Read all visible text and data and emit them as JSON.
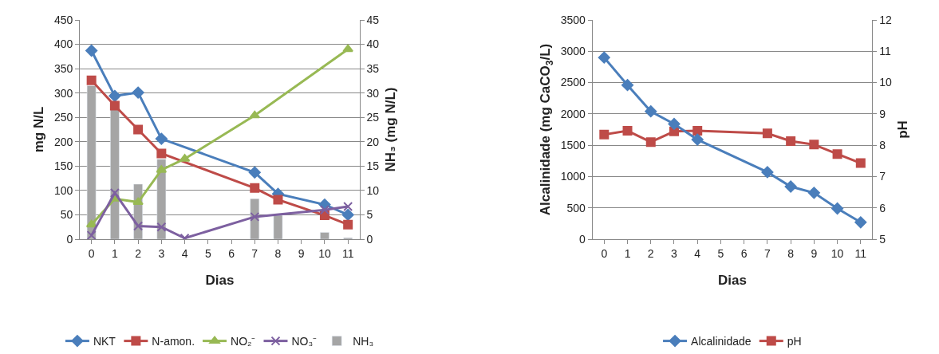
{
  "chart_data": [
    {
      "type": "line",
      "xlabel": "Dias",
      "ylabel": "mg N/L",
      "y2label": "NH₃ (mg N/L)",
      "categories": [
        "0",
        "1",
        "2",
        "3",
        "4",
        "5",
        "6",
        "7",
        "8",
        "9",
        "10",
        "11"
      ],
      "ylim": [
        0,
        450
      ],
      "yticks": [
        0,
        50,
        100,
        150,
        200,
        250,
        300,
        350,
        400,
        450
      ],
      "y2lim": [
        0,
        45
      ],
      "y2ticks": [
        0,
        5,
        10,
        15,
        20,
        25,
        30,
        35,
        40,
        45
      ],
      "grid": "y",
      "legend": "bottom",
      "series": [
        {
          "name": "NKT",
          "color": "#4a7ebb",
          "marker": "diamond",
          "values": [
            387,
            294,
            301,
            206,
            null,
            null,
            null,
            137,
            93,
            null,
            71,
            50
          ]
        },
        {
          "name": "N-amon.",
          "color": "#be4b48",
          "marker": "square",
          "values": [
            326,
            274,
            225,
            176,
            null,
            null,
            null,
            105,
            81,
            null,
            49,
            30
          ]
        },
        {
          "name": "NO₂⁻",
          "color": "#98b954",
          "marker": "triangle",
          "values": [
            30,
            83,
            76,
            142,
            165,
            null,
            null,
            254,
            null,
            null,
            null,
            390
          ]
        },
        {
          "name": "NO₃⁻",
          "color": "#7d60a0",
          "marker": "cross",
          "values": [
            8,
            95,
            27,
            25,
            2,
            null,
            null,
            46,
            null,
            null,
            60,
            67
          ]
        },
        {
          "name": "NH₃",
          "color": "#a5a5a5",
          "type": "bar",
          "axis": "y2",
          "values": [
            31.5,
            26.7,
            11.3,
            16.4,
            null,
            null,
            null,
            8.3,
            4.9,
            null,
            1.4,
            0.3
          ]
        }
      ]
    },
    {
      "type": "line",
      "xlabel": "Dias",
      "ylabel": "Alcalinidade (mg CaCO$_{3}$/L)",
      "y2label": "pH",
      "categories": [
        "0",
        "1",
        "2",
        "3",
        "4",
        "5",
        "6",
        "7",
        "8",
        "9",
        "10",
        "11"
      ],
      "ylim": [
        0,
        3500
      ],
      "yticks": [
        0,
        500,
        1000,
        1500,
        2000,
        2500,
        3000,
        3500
      ],
      "y2lim": [
        5,
        12
      ],
      "y2ticks": [
        5,
        6,
        7,
        8,
        9,
        10,
        11,
        12
      ],
      "grid": "y",
      "legend": "bottom",
      "series": [
        {
          "name": "Alcalinidade",
          "color": "#4a7ebb",
          "marker": "diamond",
          "values": [
            2900,
            2460,
            2040,
            1840,
            1590,
            null,
            null,
            1070,
            840,
            740,
            490,
            270
          ]
        },
        {
          "name": "pH",
          "color": "#be4b48",
          "marker": "square",
          "axis": "y2",
          "values": [
            8.34,
            8.46,
            8.1,
            8.44,
            8.46,
            null,
            null,
            8.38,
            8.13,
            8.02,
            7.72,
            7.43
          ]
        }
      ]
    }
  ]
}
